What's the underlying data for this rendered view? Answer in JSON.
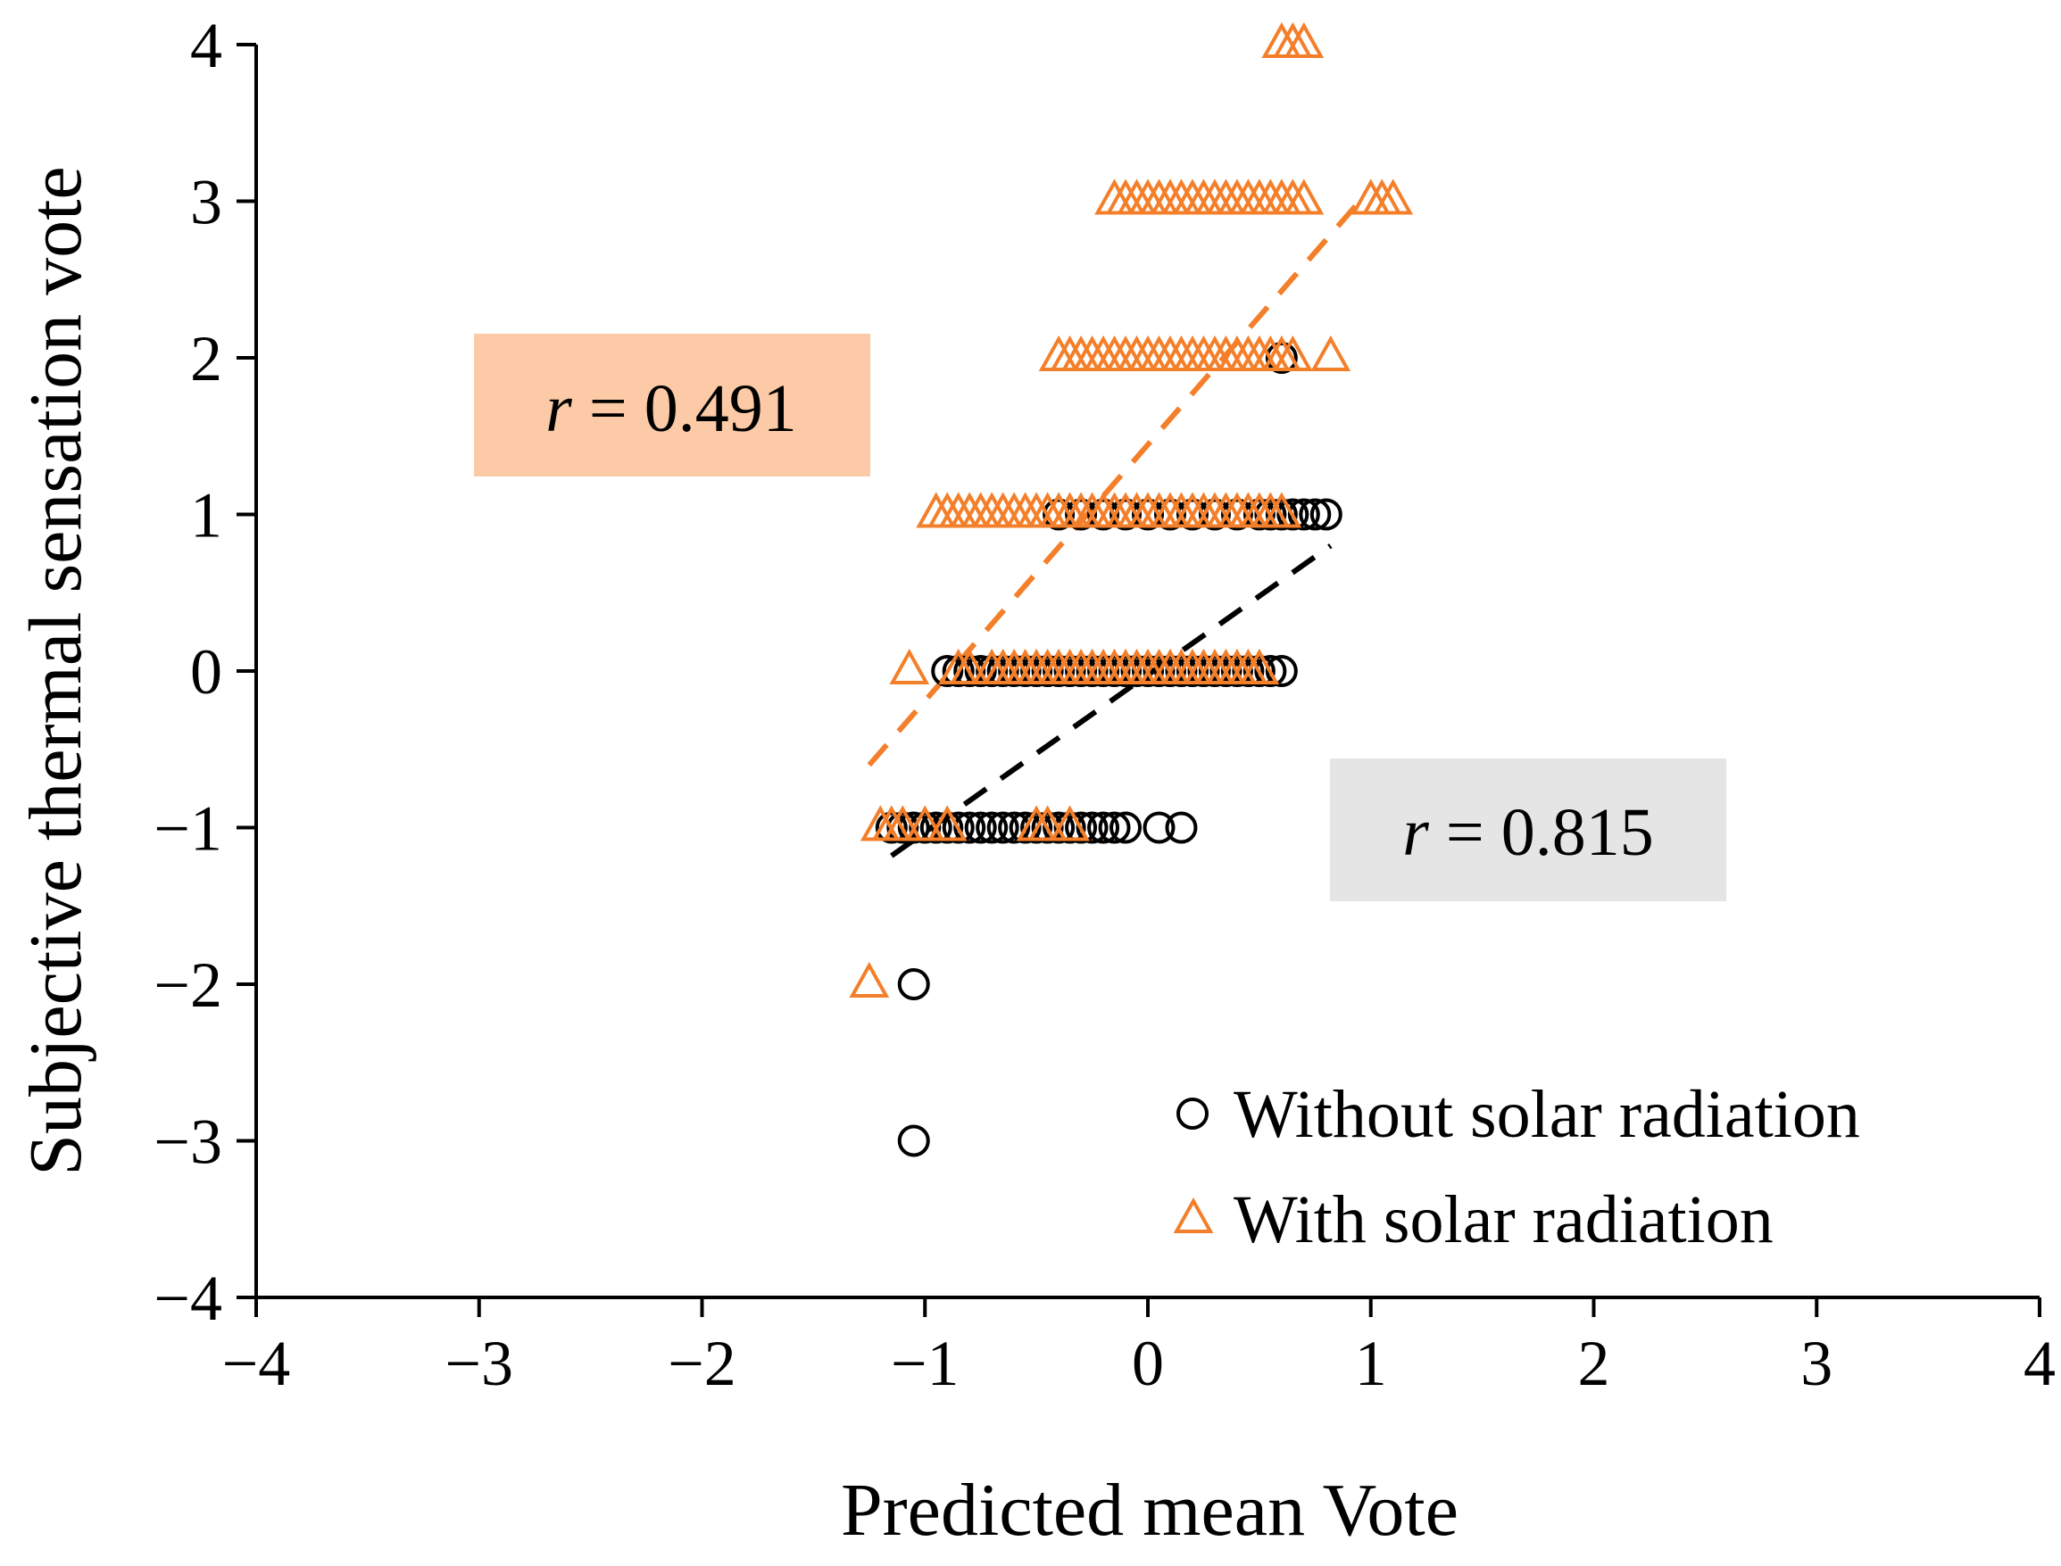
{
  "chart_data": {
    "type": "scatter",
    "title": "",
    "xlabel": "Predicted mean Vote",
    "ylabel": "Subjective thermal sensation vote",
    "xlim": [
      -4,
      4
    ],
    "ylim": [
      -4,
      4
    ],
    "xticks": [
      "−4",
      "−3",
      "−2",
      "−1",
      "0",
      "1",
      "2",
      "3",
      "4"
    ],
    "yticks": [
      "4",
      "3",
      "2",
      "1",
      "0",
      "−1",
      "−2",
      "−3",
      "−4"
    ],
    "legend_position": "bottom-right",
    "series": [
      {
        "name": "Without solar radiation",
        "marker": "circle",
        "color": "#000000",
        "points": [
          [
            -1.05,
            -3
          ],
          [
            -1.05,
            -2
          ],
          [
            -1.15,
            -1
          ],
          [
            -1.1,
            -1
          ],
          [
            -1.05,
            -1
          ],
          [
            -1.0,
            -1
          ],
          [
            -0.95,
            -1
          ],
          [
            -0.9,
            -1
          ],
          [
            -0.85,
            -1
          ],
          [
            -0.8,
            -1
          ],
          [
            -0.75,
            -1
          ],
          [
            -0.7,
            -1
          ],
          [
            -0.65,
            -1
          ],
          [
            -0.6,
            -1
          ],
          [
            -0.55,
            -1
          ],
          [
            -0.5,
            -1
          ],
          [
            -0.45,
            -1
          ],
          [
            -0.4,
            -1
          ],
          [
            -0.35,
            -1
          ],
          [
            -0.3,
            -1
          ],
          [
            -0.25,
            -1
          ],
          [
            -0.2,
            -1
          ],
          [
            -0.15,
            -1
          ],
          [
            -0.1,
            -1
          ],
          [
            0.05,
            -1
          ],
          [
            0.15,
            -1
          ],
          [
            -0.9,
            0
          ],
          [
            -0.85,
            0
          ],
          [
            -0.8,
            0
          ],
          [
            -0.75,
            0
          ],
          [
            -0.7,
            0
          ],
          [
            -0.65,
            0
          ],
          [
            -0.6,
            0
          ],
          [
            -0.55,
            0
          ],
          [
            -0.5,
            0
          ],
          [
            -0.45,
            0
          ],
          [
            -0.4,
            0
          ],
          [
            -0.35,
            0
          ],
          [
            -0.3,
            0
          ],
          [
            -0.25,
            0
          ],
          [
            -0.2,
            0
          ],
          [
            -0.15,
            0
          ],
          [
            -0.1,
            0
          ],
          [
            -0.05,
            0
          ],
          [
            0.0,
            0
          ],
          [
            0.05,
            0
          ],
          [
            0.1,
            0
          ],
          [
            0.15,
            0
          ],
          [
            0.2,
            0
          ],
          [
            0.25,
            0
          ],
          [
            0.3,
            0
          ],
          [
            0.35,
            0
          ],
          [
            0.4,
            0
          ],
          [
            0.45,
            0
          ],
          [
            0.5,
            0
          ],
          [
            0.55,
            0
          ],
          [
            0.6,
            0
          ],
          [
            -0.4,
            1
          ],
          [
            -0.3,
            1
          ],
          [
            -0.2,
            1
          ],
          [
            -0.1,
            1
          ],
          [
            0.0,
            1
          ],
          [
            0.1,
            1
          ],
          [
            0.2,
            1
          ],
          [
            0.3,
            1
          ],
          [
            0.4,
            1
          ],
          [
            0.5,
            1
          ],
          [
            0.55,
            1
          ],
          [
            0.6,
            1
          ],
          [
            0.65,
            1
          ],
          [
            0.7,
            1
          ],
          [
            0.75,
            1
          ],
          [
            0.8,
            1
          ],
          [
            0.6,
            2
          ]
        ]
      },
      {
        "name": "With solar radiation",
        "marker": "triangle",
        "color": "#F47F2A",
        "points": [
          [
            -1.25,
            -2
          ],
          [
            -1.2,
            -1
          ],
          [
            -1.15,
            -1
          ],
          [
            -1.1,
            -1
          ],
          [
            -1.0,
            -1
          ],
          [
            -0.9,
            -1
          ],
          [
            -0.5,
            -1
          ],
          [
            -0.45,
            -1
          ],
          [
            -0.35,
            -1
          ],
          [
            -1.07,
            0
          ],
          [
            -0.85,
            0
          ],
          [
            -0.8,
            0
          ],
          [
            -0.7,
            0
          ],
          [
            -0.65,
            0
          ],
          [
            -0.6,
            0
          ],
          [
            -0.55,
            0
          ],
          [
            -0.5,
            0
          ],
          [
            -0.45,
            0
          ],
          [
            -0.4,
            0
          ],
          [
            -0.35,
            0
          ],
          [
            -0.3,
            0
          ],
          [
            -0.25,
            0
          ],
          [
            -0.2,
            0
          ],
          [
            -0.15,
            0
          ],
          [
            -0.1,
            0
          ],
          [
            -0.05,
            0
          ],
          [
            0.0,
            0
          ],
          [
            0.05,
            0
          ],
          [
            0.1,
            0
          ],
          [
            0.15,
            0
          ],
          [
            0.2,
            0
          ],
          [
            0.25,
            0
          ],
          [
            0.3,
            0
          ],
          [
            0.35,
            0
          ],
          [
            0.4,
            0
          ],
          [
            0.45,
            0
          ],
          [
            0.5,
            0
          ],
          [
            -0.95,
            1
          ],
          [
            -0.9,
            1
          ],
          [
            -0.85,
            1
          ],
          [
            -0.8,
            1
          ],
          [
            -0.75,
            1
          ],
          [
            -0.7,
            1
          ],
          [
            -0.65,
            1
          ],
          [
            -0.6,
            1
          ],
          [
            -0.55,
            1
          ],
          [
            -0.5,
            1
          ],
          [
            -0.45,
            1
          ],
          [
            -0.4,
            1
          ],
          [
            -0.35,
            1
          ],
          [
            -0.3,
            1
          ],
          [
            -0.25,
            1
          ],
          [
            -0.2,
            1
          ],
          [
            -0.15,
            1
          ],
          [
            -0.1,
            1
          ],
          [
            -0.05,
            1
          ],
          [
            0.0,
            1
          ],
          [
            0.05,
            1
          ],
          [
            0.1,
            1
          ],
          [
            0.15,
            1
          ],
          [
            0.2,
            1
          ],
          [
            0.25,
            1
          ],
          [
            0.3,
            1
          ],
          [
            0.35,
            1
          ],
          [
            0.4,
            1
          ],
          [
            0.45,
            1
          ],
          [
            0.5,
            1
          ],
          [
            0.55,
            1
          ],
          [
            0.6,
            1
          ],
          [
            -0.4,
            2
          ],
          [
            -0.35,
            2
          ],
          [
            -0.3,
            2
          ],
          [
            -0.25,
            2
          ],
          [
            -0.2,
            2
          ],
          [
            -0.15,
            2
          ],
          [
            -0.1,
            2
          ],
          [
            -0.05,
            2
          ],
          [
            0.0,
            2
          ],
          [
            0.05,
            2
          ],
          [
            0.1,
            2
          ],
          [
            0.15,
            2
          ],
          [
            0.2,
            2
          ],
          [
            0.25,
            2
          ],
          [
            0.3,
            2
          ],
          [
            0.35,
            2
          ],
          [
            0.4,
            2
          ],
          [
            0.45,
            2
          ],
          [
            0.5,
            2
          ],
          [
            0.55,
            2
          ],
          [
            0.6,
            2
          ],
          [
            0.65,
            2
          ],
          [
            0.82,
            2
          ],
          [
            -0.15,
            3
          ],
          [
            -0.1,
            3
          ],
          [
            -0.05,
            3
          ],
          [
            0.0,
            3
          ],
          [
            0.05,
            3
          ],
          [
            0.1,
            3
          ],
          [
            0.15,
            3
          ],
          [
            0.2,
            3
          ],
          [
            0.25,
            3
          ],
          [
            0.3,
            3
          ],
          [
            0.35,
            3
          ],
          [
            0.4,
            3
          ],
          [
            0.45,
            3
          ],
          [
            0.5,
            3
          ],
          [
            0.55,
            3
          ],
          [
            0.6,
            3
          ],
          [
            0.65,
            3
          ],
          [
            0.7,
            3
          ],
          [
            1.0,
            3
          ],
          [
            1.05,
            3
          ],
          [
            1.1,
            3
          ],
          [
            0.6,
            4
          ],
          [
            0.65,
            4
          ],
          [
            0.7,
            4
          ]
        ]
      }
    ],
    "trendlines": [
      {
        "series": "With solar radiation",
        "color": "#F47F2A",
        "style": "dashed",
        "from": [
          -1.25,
          -0.6
        ],
        "to": [
          0.95,
          3.0
        ]
      },
      {
        "series": "Without solar radiation",
        "color": "#000000",
        "style": "dashed",
        "from": [
          -1.15,
          -1.18
        ],
        "to": [
          0.82,
          0.8
        ]
      }
    ],
    "annotations": [
      {
        "italic": "r",
        "text": " = 0.491",
        "background": "#FCCAA6",
        "anchor": "upper-left"
      },
      {
        "italic": "r",
        "text": " = 0.815",
        "background": "#E5E5E5",
        "anchor": "lower-right"
      }
    ]
  }
}
